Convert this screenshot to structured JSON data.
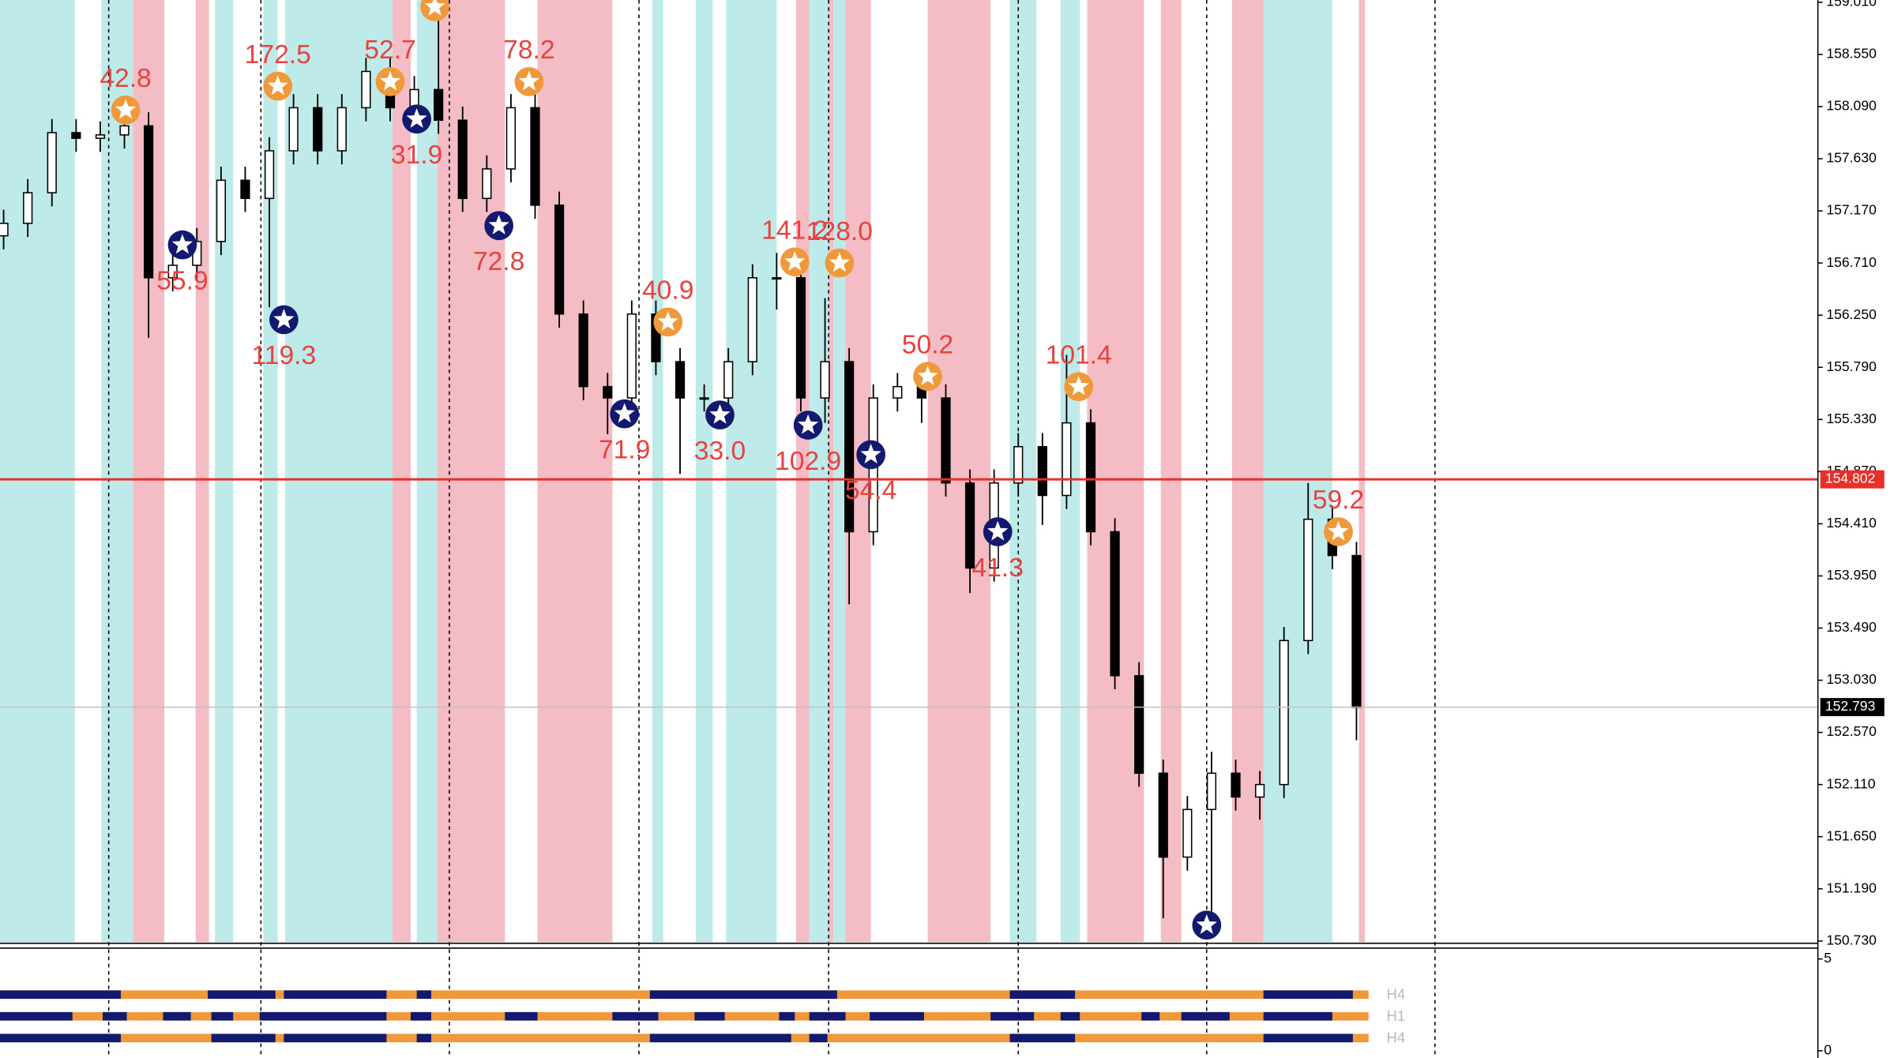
{
  "chart_data": {
    "type": "candlestick",
    "ylim": [
      150.71,
      159.03
    ],
    "yticks": [
      {
        "value": 159.01,
        "label": "159.010"
      },
      {
        "value": 158.55,
        "label": "158.550"
      },
      {
        "value": 158.09,
        "label": "158.090"
      },
      {
        "value": 157.63,
        "label": "157.630"
      },
      {
        "value": 157.17,
        "label": "157.170"
      },
      {
        "value": 156.71,
        "label": "156.710"
      },
      {
        "value": 156.25,
        "label": "156.250"
      },
      {
        "value": 155.79,
        "label": "155.790"
      },
      {
        "value": 155.33,
        "label": "155.330"
      },
      {
        "value": 154.87,
        "label": "154.870"
      },
      {
        "value": 154.41,
        "label": "154.410"
      },
      {
        "value": 153.95,
        "label": "153.950"
      },
      {
        "value": 153.49,
        "label": "153.490"
      },
      {
        "value": 153.03,
        "label": "153.030"
      },
      {
        "value": 152.57,
        "label": "152.570"
      },
      {
        "value": 152.11,
        "label": "152.110"
      },
      {
        "value": 151.65,
        "label": "151.650"
      },
      {
        "value": 151.19,
        "label": "151.190"
      },
      {
        "value": 150.73,
        "label": "150.730"
      }
    ],
    "open": [
      156.95,
      157.06,
      157.33,
      157.86,
      157.81,
      157.84,
      157.92,
      156.58,
      156.69,
      156.9,
      157.44,
      157.28,
      157.7,
      158.08,
      157.7,
      158.08,
      158.4,
      158.08,
      158.24,
      157.97,
      157.28,
      157.54,
      158.08,
      157.22,
      156.26,
      155.62,
      155.52,
      156.26,
      155.84,
      155.52,
      155.52,
      155.84,
      156.58,
      156.58,
      155.52,
      155.84,
      154.34,
      155.52,
      155.62,
      155.52,
      154.77,
      154.02,
      154.77,
      155.09,
      154.66,
      155.3,
      154.34,
      153.07,
      152.21,
      151.47,
      151.89,
      152.21,
      152.0,
      152.11,
      153.38,
      154.45,
      154.13
    ],
    "high": [
      157.18,
      157.45,
      157.98,
      157.98,
      157.96,
      158.04,
      158.04,
      156.81,
      157.02,
      157.56,
      157.56,
      157.82,
      158.2,
      158.2,
      158.2,
      158.52,
      158.52,
      158.36,
      159.0,
      158.09,
      157.66,
      158.2,
      158.2,
      157.34,
      156.38,
      155.74,
      156.38,
      156.38,
      155.96,
      155.64,
      155.96,
      156.7,
      156.8,
      156.7,
      156.4,
      155.96,
      155.64,
      155.74,
      155.74,
      155.64,
      154.89,
      154.89,
      155.21,
      155.21,
      155.9,
      155.42,
      154.46,
      153.19,
      152.33,
      152.01,
      152.4,
      152.33,
      152.23,
      153.5,
      154.77,
      154.57,
      154.25
    ],
    "low": [
      156.83,
      156.94,
      157.21,
      157.69,
      157.69,
      157.72,
      156.05,
      156.46,
      156.57,
      156.78,
      157.16,
      156.32,
      157.58,
      157.58,
      157.58,
      157.96,
      157.96,
      157.96,
      157.85,
      157.16,
      157.16,
      157.42,
      157.1,
      156.14,
      155.5,
      155.2,
      155.4,
      155.72,
      154.85,
      155.4,
      155.4,
      155.72,
      156.3,
      155.4,
      155.3,
      153.7,
      154.22,
      155.4,
      155.3,
      154.65,
      153.8,
      153.9,
      154.65,
      154.4,
      154.54,
      154.22,
      152.95,
      152.09,
      150.93,
      151.35,
      150.85,
      151.88,
      151.8,
      151.99,
      153.26,
      154.01,
      152.5
    ],
    "close": [
      157.06,
      157.33,
      157.86,
      157.81,
      157.84,
      157.92,
      156.58,
      156.69,
      156.9,
      157.44,
      157.28,
      157.7,
      158.08,
      157.7,
      158.08,
      158.4,
      158.08,
      158.24,
      157.97,
      157.28,
      157.54,
      158.08,
      157.22,
      156.26,
      155.62,
      155.52,
      156.26,
      155.84,
      155.52,
      155.52,
      155.84,
      156.58,
      156.58,
      155.52,
      155.84,
      154.34,
      155.52,
      155.62,
      155.52,
      154.77,
      154.02,
      154.77,
      155.09,
      154.66,
      155.3,
      154.34,
      153.07,
      152.21,
      151.47,
      151.89,
      152.21,
      152.0,
      152.11,
      153.38,
      154.45,
      154.13,
      152.79
    ],
    "hlines": [
      {
        "value": 154.802,
        "color": "#e8302a",
        "label_bg": "#e8302a"
      },
      {
        "value": 152.793,
        "color": "#c0c0c0",
        "label_bg": "#000000"
      }
    ],
    "marker_colors": {
      "sell": "#f0993a",
      "buy": "#12196e"
    },
    "marker_label_color": "#e8423f",
    "markers": [
      {
        "kind": "sell",
        "index": 5.05,
        "price": 158.06,
        "value": 42.8
      },
      {
        "kind": "sell",
        "index": 11.35,
        "price": 158.27,
        "value": 172.5
      },
      {
        "kind": "sell",
        "index": 16,
        "price": 158.31,
        "value": 52.7
      },
      {
        "kind": "sell",
        "index": 17.85,
        "price": 158.97
      },
      {
        "kind": "sell",
        "index": 21.75,
        "price": 158.31,
        "value": 78.2
      },
      {
        "kind": "sell",
        "index": 27.5,
        "price": 156.19,
        "value": 40.9
      },
      {
        "kind": "sell",
        "index": 32.75,
        "price": 156.72,
        "value": 141.2
      },
      {
        "kind": "sell",
        "index": 34.6,
        "price": 156.71,
        "value": 128,
        "label": "128.0"
      },
      {
        "kind": "sell",
        "index": 38.25,
        "price": 155.71,
        "value": 50.2
      },
      {
        "kind": "sell",
        "index": 44.5,
        "price": 155.62,
        "value": 101.4
      },
      {
        "kind": "sell",
        "index": 55.25,
        "price": 154.34,
        "value": 59.2
      },
      {
        "kind": "buy",
        "index": 7.4,
        "price": 156.87,
        "value": 55.9
      },
      {
        "kind": "buy",
        "index": 11.6,
        "price": 156.21,
        "value": 119.3
      },
      {
        "kind": "buy",
        "index": 17.1,
        "price": 157.98,
        "value": 31.9
      },
      {
        "kind": "buy",
        "index": 20.5,
        "price": 157.04,
        "value": 72.8
      },
      {
        "kind": "buy",
        "index": 25.7,
        "price": 155.38,
        "value": 71.9
      },
      {
        "kind": "buy",
        "index": 29.65,
        "price": 155.37,
        "value": 33,
        "label": "33.0"
      },
      {
        "kind": "buy",
        "index": 33.3,
        "price": 155.28,
        "value": 102.9
      },
      {
        "kind": "buy",
        "index": 35.9,
        "price": 155.02,
        "value": 54.4
      },
      {
        "kind": "buy",
        "index": 41.15,
        "price": 154.34,
        "value": 41.3
      },
      {
        "kind": "buy",
        "index": 49.8,
        "price": 150.87
      }
    ],
    "sub_panel": {
      "ylim": [
        0,
        5
      ],
      "yticks": [
        0,
        5
      ],
      "rows": [
        "H4",
        "H1",
        "H4"
      ]
    }
  }
}
